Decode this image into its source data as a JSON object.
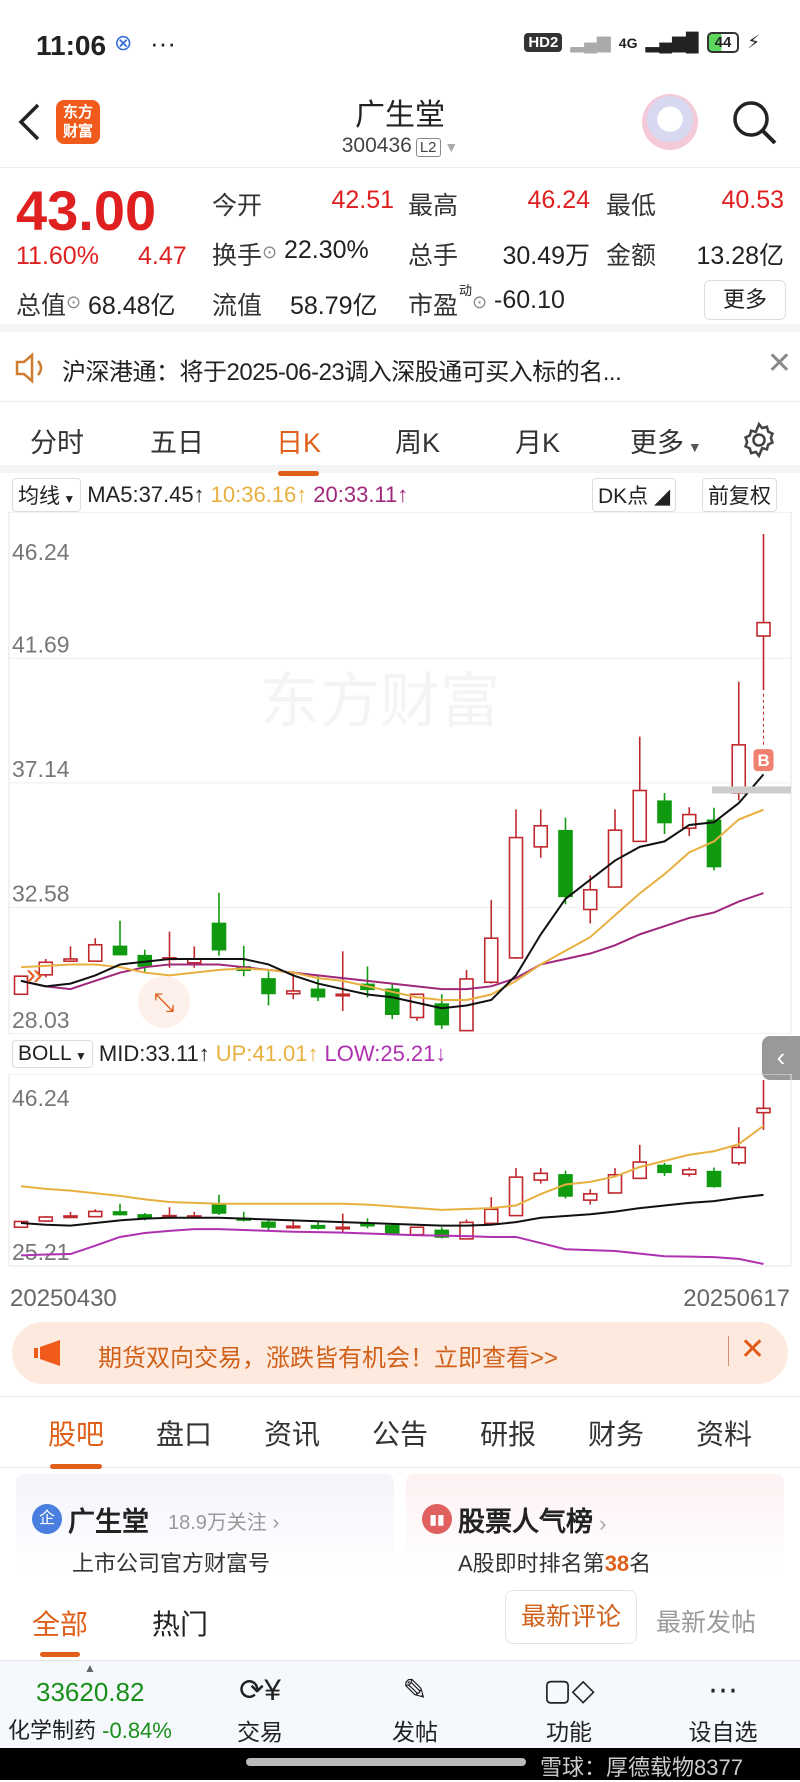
{
  "status_bar": {
    "time": "11:06",
    "dots": "···",
    "hd": "HD2",
    "network": "4G",
    "battery": "44"
  },
  "header": {
    "logo": "东方财富",
    "title": "广生堂",
    "code": "300436",
    "level": "L2"
  },
  "quote": {
    "price": "43.00",
    "change_pct": "11.60%",
    "change": "4.47",
    "cells": [
      {
        "label": "今开",
        "value": "42.51"
      },
      {
        "label": "最高",
        "value": "46.24"
      },
      {
        "label": "最低",
        "value": "40.53"
      },
      {
        "label": "换手",
        "value": "22.30%"
      },
      {
        "label": "总手",
        "value": "30.49万"
      },
      {
        "label": "金额",
        "value": "13.28亿"
      },
      {
        "label": "总值",
        "value": "68.48亿"
      },
      {
        "label": "流值",
        "value": "58.79亿"
      },
      {
        "label": "市盈",
        "sup": "动",
        "value": "-60.10"
      }
    ],
    "more": "更多"
  },
  "notice": {
    "text": "沪深港通：将于2025-06-23调入深股通可买入标的名..."
  },
  "chart_tabs": [
    "分时",
    "五日",
    "日K",
    "周K",
    "月K",
    "更多"
  ],
  "active_chart_tab": "日K",
  "ma_legend": {
    "selector": "均线",
    "ma5": "MA5:37.45",
    "ma10": "10:36.16",
    "ma20": "20:33.11",
    "dk": "DK点",
    "adjust": "前复权",
    "b_marker": "B"
  },
  "boll_legend": {
    "selector": "BOLL",
    "mid": "MID:33.11",
    "up": "UP:41.01",
    "low": "LOW:25.21"
  },
  "colors": {
    "up": "#c0282d",
    "down": "#0f9a0f",
    "ma5": "#111111",
    "ma10": "#e8b040",
    "ma20": "#a0287a",
    "accent": "#e0601a"
  },
  "chart_data": [
    {
      "type": "candlestick",
      "y_ticks": [
        "46.24",
        "41.69",
        "37.14",
        "32.58",
        "28.03"
      ],
      "ylim": [
        28.03,
        46.24
      ],
      "grid": true,
      "candles": [
        [
          29.41,
          30.07,
          30.1,
          29.4
        ],
        [
          30.12,
          30.58,
          30.7,
          30.03
        ],
        [
          30.62,
          30.7,
          31.16,
          30.6
        ],
        [
          30.62,
          31.22,
          31.46,
          30.6
        ],
        [
          31.16,
          30.86,
          32.1,
          30.83
        ],
        [
          30.82,
          30.44,
          31.04,
          30.2
        ],
        [
          30.74,
          30.74,
          31.7,
          30.38
        ],
        [
          30.56,
          30.7,
          31.16,
          30.38
        ],
        [
          32.0,
          31.04,
          33.12,
          30.82
        ],
        [
          30.41,
          30.29,
          31.18,
          30.07
        ],
        [
          29.97,
          29.44,
          30.25,
          29.0
        ],
        [
          29.43,
          29.53,
          30.25,
          29.23
        ],
        [
          29.59,
          29.32,
          30.07,
          29.16
        ],
        [
          29.41,
          29.41,
          30.98,
          28.8
        ],
        [
          29.77,
          29.59,
          30.43,
          29.29
        ],
        [
          29.59,
          28.68,
          29.83,
          28.5
        ],
        [
          28.56,
          29.41,
          29.41,
          28.44
        ],
        [
          29.05,
          28.3,
          29.41,
          28.14
        ],
        [
          28.08,
          29.97,
          30.3,
          28.05
        ],
        [
          29.85,
          31.46,
          32.85,
          29.8
        ],
        [
          30.74,
          35.14,
          36.17,
          30.7
        ],
        [
          34.8,
          35.57,
          36.17,
          34.4
        ],
        [
          35.39,
          32.99,
          35.87,
          32.7
        ],
        [
          32.51,
          33.23,
          33.76,
          32.0
        ],
        [
          33.33,
          35.41,
          36.17,
          33.3
        ],
        [
          35.0,
          36.86,
          38.83,
          34.99
        ],
        [
          36.47,
          35.69,
          36.77,
          35.27
        ],
        [
          35.48,
          35.98,
          36.25,
          35.2
        ],
        [
          35.77,
          34.08,
          36.23,
          33.94
        ],
        [
          36.77,
          38.53,
          40.84,
          36.5
        ],
        [
          42.51,
          43.0,
          46.24,
          40.53
        ]
      ],
      "ma5": [
        29.9,
        29.7,
        29.8,
        30.1,
        30.5,
        30.6,
        30.7,
        30.7,
        30.7,
        30.7,
        30.5,
        30.1,
        29.8,
        29.6,
        29.4,
        29.3,
        29.1,
        28.9,
        29.0,
        29.2,
        30.1,
        31.6,
        32.9,
        33.6,
        34.3,
        34.8,
        35.0,
        35.6,
        35.7,
        36.4,
        37.45
      ],
      "ma10": [
        30.4,
        30.45,
        30.5,
        30.5,
        30.4,
        30.2,
        30.1,
        30.2,
        30.3,
        30.35,
        30.3,
        30.2,
        30.0,
        29.9,
        29.7,
        29.5,
        29.3,
        29.2,
        29.2,
        29.4,
        29.9,
        30.5,
        31.0,
        31.5,
        32.3,
        33.1,
        33.8,
        34.6,
        35.0,
        35.8,
        36.16
      ],
      "ma20": [
        29.9,
        29.7,
        29.6,
        29.9,
        30.2,
        30.4,
        30.5,
        30.5,
        30.5,
        30.4,
        30.3,
        30.2,
        30.1,
        30.0,
        29.9,
        29.8,
        29.7,
        29.6,
        29.6,
        29.7,
        30.0,
        30.5,
        30.7,
        30.9,
        31.2,
        31.6,
        31.9,
        32.2,
        32.4,
        32.8,
        33.11
      ]
    },
    {
      "type": "candlestick-boll",
      "y_ticks": [
        "46.24",
        "25.21"
      ],
      "ylim": [
        25.21,
        46.24
      ],
      "x_labels": [
        "20250430",
        "20250617"
      ],
      "up": [
        34.1,
        33.8,
        33.6,
        33.3,
        33.0,
        32.6,
        32.3,
        32.2,
        32.1,
        32.1,
        32.1,
        32.1,
        32.1,
        32.1,
        32.0,
        31.8,
        31.6,
        31.4,
        31.5,
        31.6,
        31.9,
        33.2,
        34.3,
        34.6,
        35.2,
        36.3,
        37.0,
        37.7,
        38.1,
        38.9,
        41.01
      ],
      "mid": [
        29.9,
        29.7,
        29.6,
        29.9,
        30.2,
        30.4,
        30.5,
        30.5,
        30.5,
        30.4,
        30.3,
        30.2,
        30.1,
        30.0,
        29.9,
        29.8,
        29.7,
        29.6,
        29.6,
        29.7,
        30.0,
        30.5,
        30.7,
        30.9,
        31.2,
        31.6,
        31.9,
        32.2,
        32.4,
        32.8,
        33.11
      ],
      "low": [
        26.2,
        26.3,
        26.35,
        27.3,
        28.3,
        28.75,
        29.0,
        29.2,
        29.2,
        29.1,
        29.0,
        28.9,
        28.85,
        28.8,
        28.7,
        28.6,
        28.5,
        28.45,
        28.4,
        28.3,
        28.3,
        27.6,
        26.9,
        26.8,
        26.7,
        26.4,
        26.1,
        26.05,
        26.0,
        25.8,
        25.21
      ]
    }
  ],
  "promo": {
    "text": "期货双向交易，涨跌皆有机会！立即查看>>"
  },
  "section_tabs": [
    "股吧",
    "盘口",
    "资讯",
    "公告",
    "研报",
    "财务",
    "资料"
  ],
  "cards": [
    {
      "icon": "企",
      "title": "广生堂",
      "meta": "18.9万关注",
      "sub": "上市公司官方财富号"
    },
    {
      "title": "股票人气榜",
      "sub_prefix": "A股即时排名第",
      "rank": "38",
      "sub_suffix": "名"
    }
  ],
  "feed_tabs": [
    "全部",
    "热门"
  ],
  "sort_tabs": [
    "最新评论",
    "最新发帖"
  ],
  "bottom_bar": {
    "index_value": "33620.82",
    "sector": "化学制药",
    "sector_change": "-0.84%",
    "items": [
      "交易",
      "发帖",
      "功能",
      "设自选"
    ]
  },
  "watermark": "雪球：厚德载物8377"
}
